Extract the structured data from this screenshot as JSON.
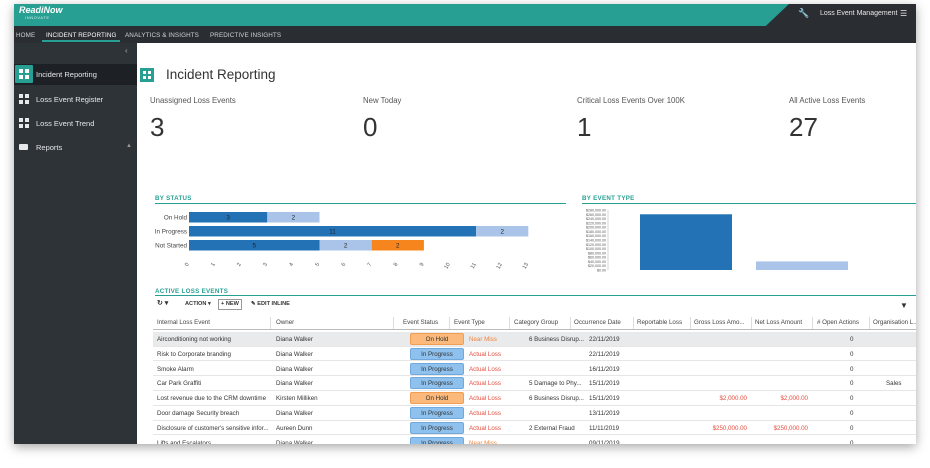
{
  "header": {
    "logo": "ReadiNow",
    "logo_sub": "INNOVATE",
    "app_title": "Loss Event Management"
  },
  "nav": {
    "tabs": [
      "HOME",
      "INCIDENT REPORTING",
      "ANALYTICS & INSIGHTS",
      "PREDICTIVE INSIGHTS"
    ]
  },
  "sidebar": {
    "items": [
      {
        "label": "Incident Reporting"
      },
      {
        "label": "Loss Event Register"
      },
      {
        "label": "Loss Event Trend"
      },
      {
        "label": "Reports"
      }
    ]
  },
  "page": {
    "title": "Incident Reporting"
  },
  "kpis": [
    {
      "label": "Unassigned Loss Events",
      "value": "3"
    },
    {
      "label": "New Today",
      "value": "0"
    },
    {
      "label": "Critical Loss Events Over 100K",
      "value": "1"
    },
    {
      "label": "All Active Loss Events",
      "value": "27"
    }
  ],
  "sections": {
    "by_status": "BY STATUS",
    "by_event_type": "BY EVENT TYPE",
    "active_loss_events": "ACTIVE LOSS EVENTS"
  },
  "toolbar": {
    "action": "ACTION",
    "new": "NEW",
    "edit_inline": "EDIT INLINE"
  },
  "colors": {
    "teal": "#27a093",
    "series_dark": "#2472b6",
    "series_light": "#a9c4e8",
    "series_orange": "#f7851e"
  },
  "chart_data": [
    {
      "type": "bar",
      "orientation": "horizontal",
      "stacked": true,
      "categories": [
        "On Hold",
        "In Progress",
        "Not Started"
      ],
      "series": [
        {
          "values": [
            3,
            11,
            5
          ]
        },
        {
          "values": [
            2,
            2,
            2
          ]
        },
        {
          "values": [
            0,
            0,
            2
          ]
        }
      ],
      "xlim": [
        0,
        13
      ],
      "xticks": [
        "0",
        "1",
        "2",
        "3",
        "4",
        "5",
        "6",
        "7",
        "8",
        "9",
        "10",
        "11",
        "12",
        "13"
      ]
    },
    {
      "type": "bar",
      "categories": [
        "",
        ""
      ],
      "values": [
        260000,
        40000
      ],
      "ylim": [
        0,
        280000
      ],
      "yticks": [
        "$0.00",
        "$20,000.00",
        "$40,000.00",
        "$60,000.00",
        "$80,000.00",
        "$100,000.00",
        "$120,000.00",
        "$140,000.00",
        "$160,000.00",
        "$180,000.00",
        "$200,000.00",
        "$220,000.00",
        "$240,000.00",
        "$260,000.00",
        "$280,000.00"
      ]
    }
  ],
  "table": {
    "columns": [
      "Internal Loss Event",
      "Owner",
      "Event Status",
      "Event Type",
      "Category Group",
      "Occurrence Date",
      "Reportable Loss",
      "Gross Loss Amo...",
      "Net Loss Amount",
      "# Open Actions",
      "Organisation L..."
    ],
    "rows": [
      {
        "event": "Airconditioning not working",
        "owner": "Diana Walker",
        "status": "On Hold",
        "type": "Near Miss",
        "category": "6 Business Disrup...",
        "date": "22/11/2019",
        "gross": "",
        "net": "",
        "actions": "0",
        "org": ""
      },
      {
        "event": "Risk to Corporate branding",
        "owner": "Diana Walker",
        "status": "In Progress",
        "type": "Actual Loss",
        "category": "",
        "date": "22/11/2019",
        "gross": "",
        "net": "",
        "actions": "0",
        "org": ""
      },
      {
        "event": "Smoke Alarm",
        "owner": "Diana Walker",
        "status": "In Progress",
        "type": "Actual Loss",
        "category": "",
        "date": "16/11/2019",
        "gross": "",
        "net": "",
        "actions": "0",
        "org": ""
      },
      {
        "event": "Car Park Graffiti",
        "owner": "Diana Walker",
        "status": "In Progress",
        "type": "Actual Loss",
        "category": "5 Damage to Phy...",
        "date": "15/11/2019",
        "gross": "",
        "net": "",
        "actions": "0",
        "org": "Sales"
      },
      {
        "event": "Lost revenue due to the CRM downtime",
        "owner": "Kirsten Milliken",
        "status": "On Hold",
        "type": "Actual Loss",
        "category": "6 Business Disrup...",
        "date": "15/11/2019",
        "gross": "$2,000.00",
        "net": "$2,000.00",
        "actions": "0",
        "org": ""
      },
      {
        "event": "Door damage Security breach",
        "owner": "Diana Walker",
        "status": "In Progress",
        "type": "Actual Loss",
        "category": "",
        "date": "13/11/2019",
        "gross": "",
        "net": "",
        "actions": "0",
        "org": ""
      },
      {
        "event": "Disclosure of customer's sensitive infor...",
        "owner": "Aureen Dunn",
        "status": "In Progress",
        "type": "Actual Loss",
        "category": "2 External Fraud",
        "date": "11/11/2019",
        "gross": "$250,000.00",
        "net": "$250,000.00",
        "actions": "0",
        "org": ""
      },
      {
        "event": "Lifts and Escalators",
        "owner": "Diana Walker",
        "status": "In Progress",
        "type": "Near Miss",
        "category": "",
        "date": "09/11/2019",
        "gross": "",
        "net": "",
        "actions": "0",
        "org": ""
      }
    ]
  }
}
